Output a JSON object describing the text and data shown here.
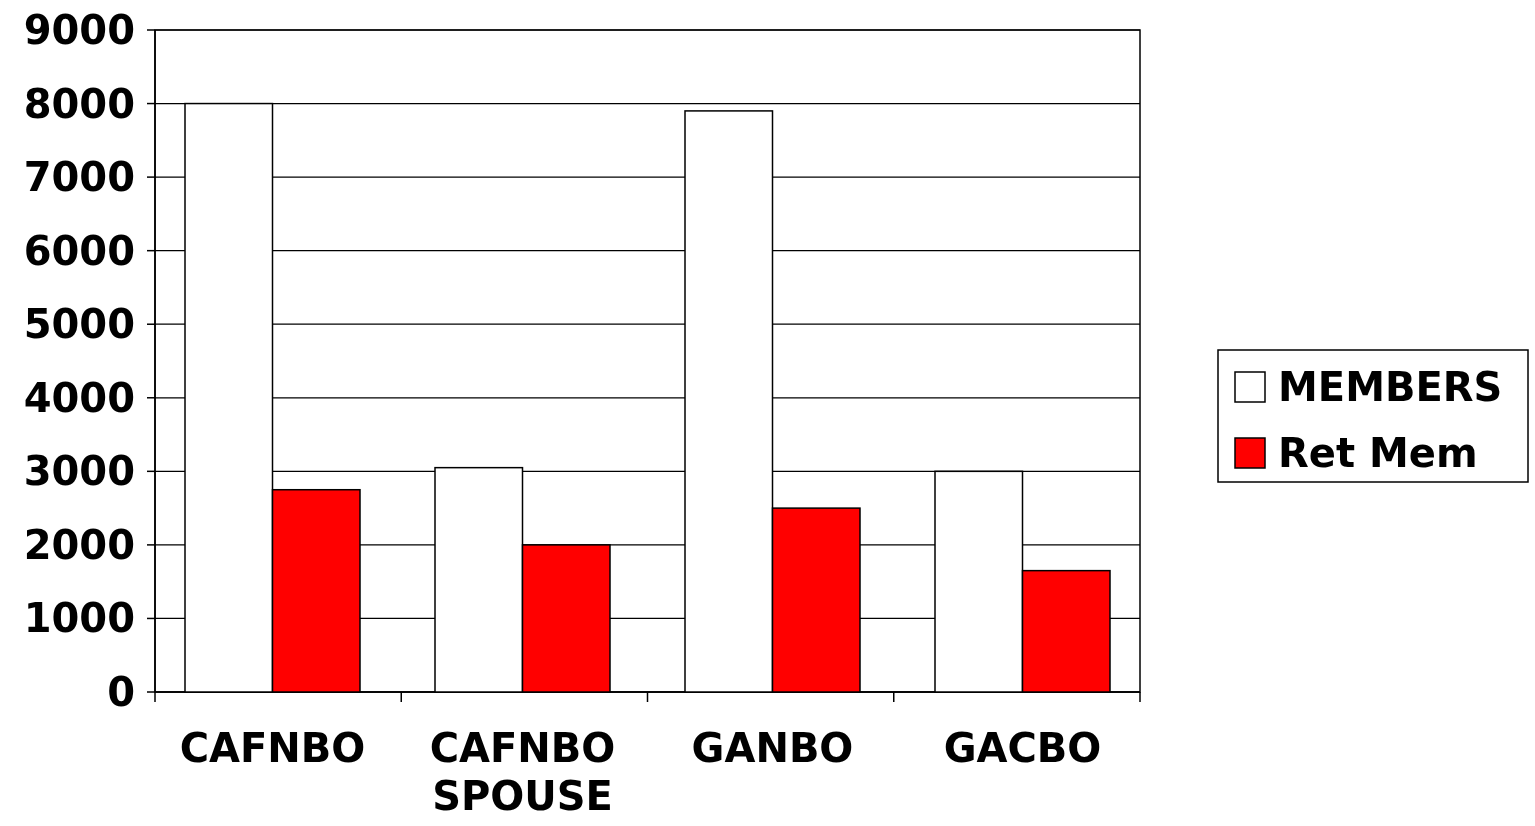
{
  "chart_data": {
    "type": "bar",
    "categories": [
      "CAFNBO",
      "CAFNBO SPOUSE",
      "GANBO",
      "GACBO"
    ],
    "series": [
      {
        "name": "MEMBERS",
        "color": "#ffffff",
        "values": [
          8000,
          3050,
          7900,
          3000
        ]
      },
      {
        "name": "Ret Mem",
        "color": "#ff0000",
        "values": [
          2750,
          2000,
          2500,
          1650
        ]
      }
    ],
    "ylim": [
      0,
      9000
    ],
    "yticks": [
      0,
      1000,
      2000,
      3000,
      4000,
      5000,
      6000,
      7000,
      8000,
      9000
    ],
    "grid": "y",
    "legend": "right"
  }
}
